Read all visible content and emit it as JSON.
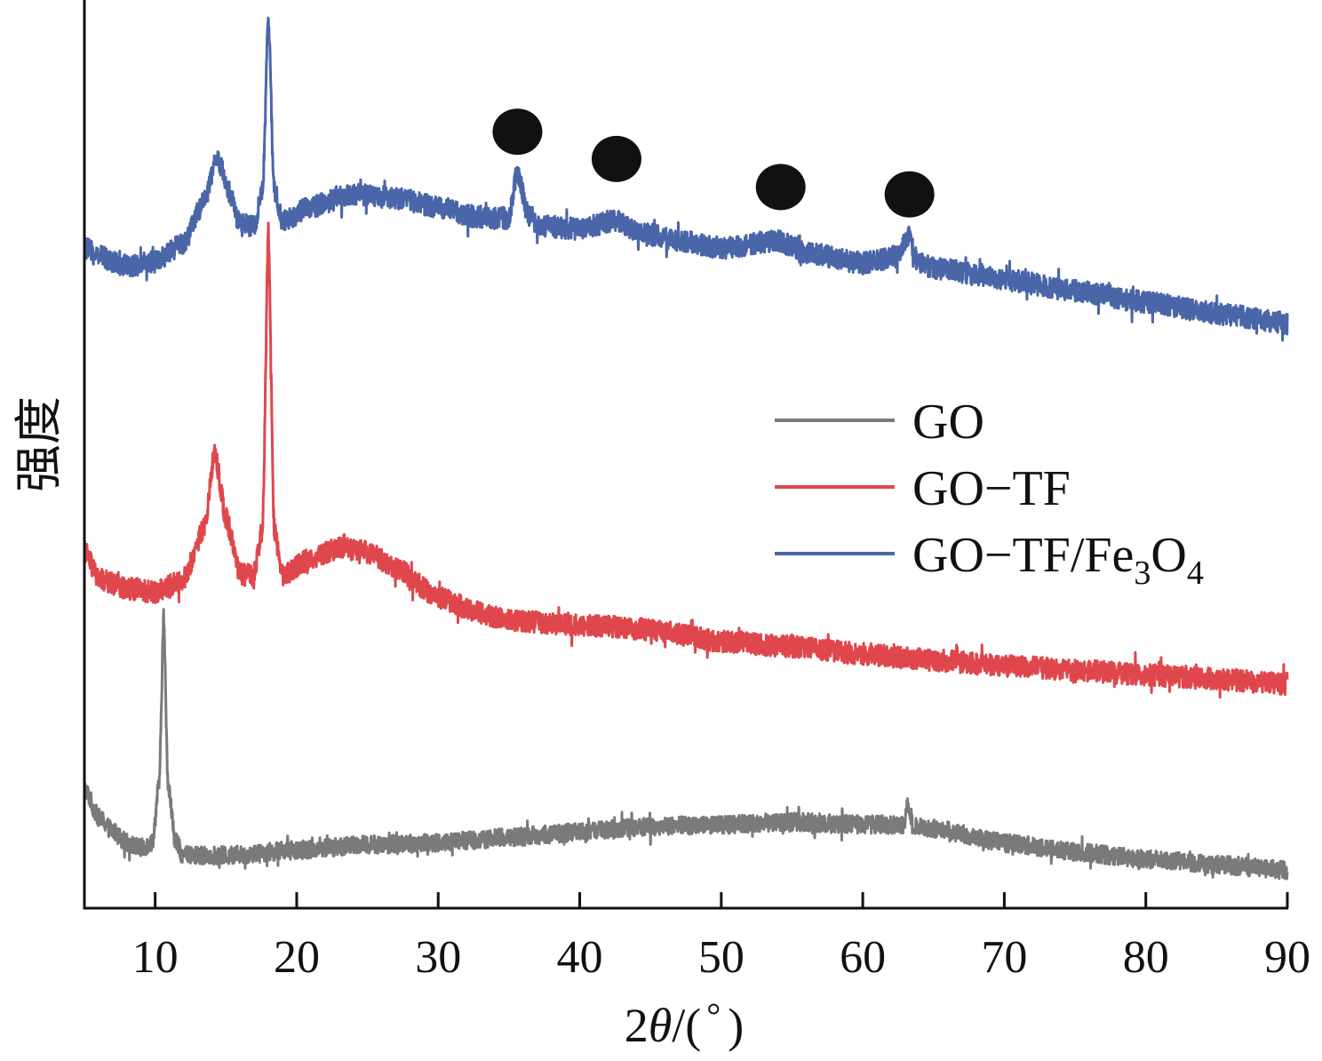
{
  "chart_data": {
    "type": "line",
    "title": "",
    "xlabel": "2θ/(°)",
    "xlabel_parts": {
      "pre": "2",
      "theta": "θ",
      "post": "/(",
      "deg": "°",
      "close": ")"
    },
    "ylabel": "强度",
    "xlim": [
      5,
      90
    ],
    "ylim": [
      0,
      1000
    ],
    "y_units": "arbitrary intensity (a.u.), traces vertically offset",
    "x_ticks": [
      10,
      20,
      30,
      40,
      50,
      60,
      70,
      80,
      90
    ],
    "x_tick_labels": [
      "10",
      "20",
      "30",
      "40",
      "50",
      "60",
      "70",
      "80",
      "90"
    ],
    "y_ticks": [],
    "grid": false,
    "legend": {
      "placement": "center-right",
      "entries": [
        {
          "label": "GO",
          "color": "#7a7a7a"
        },
        {
          "label": "GO−TF",
          "color": "#e0474c"
        },
        {
          "label": "GO−TF/Fe",
          "sub1": "3",
          "mid": "O",
          "sub2": "4",
          "color": "#4a66a8"
        }
      ]
    },
    "series": [
      {
        "name": "GO",
        "color": "#7a7a7a",
        "noise": 10,
        "points": [
          [
            5,
            132
          ],
          [
            6,
            100
          ],
          [
            7,
            85
          ],
          [
            8,
            72
          ],
          [
            9,
            66
          ],
          [
            9.8,
            72
          ],
          [
            10.3,
            140
          ],
          [
            10.6,
            322
          ],
          [
            10.9,
            140
          ],
          [
            11.4,
            75
          ],
          [
            12,
            58
          ],
          [
            15,
            58
          ],
          [
            20,
            64
          ],
          [
            25,
            70
          ],
          [
            30,
            72
          ],
          [
            35,
            78
          ],
          [
            40,
            84
          ],
          [
            45,
            90
          ],
          [
            50,
            92
          ],
          [
            55,
            95
          ],
          [
            60,
            92
          ],
          [
            62.9,
            92
          ],
          [
            63.2,
            117
          ],
          [
            63.5,
            92
          ],
          [
            65,
            88
          ],
          [
            70,
            72
          ],
          [
            75,
            62
          ],
          [
            80,
            54
          ],
          [
            85,
            48
          ],
          [
            90,
            42
          ]
        ]
      },
      {
        "name": "GO−TF",
        "color": "#e0474c",
        "noise": 12,
        "points": [
          [
            5,
            394
          ],
          [
            6,
            362
          ],
          [
            8,
            352
          ],
          [
            10,
            348
          ],
          [
            12,
            362
          ],
          [
            13.5,
            420
          ],
          [
            14.2,
            502
          ],
          [
            15,
            430
          ],
          [
            16,
            367
          ],
          [
            17,
            367
          ],
          [
            17.6,
            420
          ],
          [
            18,
            747
          ],
          [
            18.4,
            420
          ],
          [
            19,
            367
          ],
          [
            21,
            385
          ],
          [
            23,
            397
          ],
          [
            25,
            392
          ],
          [
            27,
            375
          ],
          [
            30,
            342
          ],
          [
            33,
            325
          ],
          [
            35,
            317
          ],
          [
            40,
            312
          ],
          [
            45,
            307
          ],
          [
            50,
            294
          ],
          [
            55,
            288
          ],
          [
            60,
            280
          ],
          [
            65,
            273
          ],
          [
            70,
            267
          ],
          [
            75,
            262
          ],
          [
            80,
            257
          ],
          [
            85,
            252
          ],
          [
            90,
            247
          ]
        ]
      },
      {
        "name": "GO−TF/Fe3O4",
        "color": "#4a66a8",
        "noise": 12,
        "points": [
          [
            5,
            727
          ],
          [
            6,
            718
          ],
          [
            8,
            707
          ],
          [
            10,
            712
          ],
          [
            12,
            732
          ],
          [
            13.5,
            780
          ],
          [
            14.4,
            827
          ],
          [
            15.2,
            790
          ],
          [
            16,
            752
          ],
          [
            17,
            752
          ],
          [
            17.6,
            790
          ],
          [
            18,
            982
          ],
          [
            18.4,
            790
          ],
          [
            19,
            757
          ],
          [
            21,
            772
          ],
          [
            24,
            787
          ],
          [
            27,
            782
          ],
          [
            30,
            772
          ],
          [
            33,
            760
          ],
          [
            35,
            760
          ],
          [
            35.6,
            812
          ],
          [
            36.3,
            765
          ],
          [
            37,
            752
          ],
          [
            40,
            748
          ],
          [
            42.6,
            758
          ],
          [
            44,
            745
          ],
          [
            47,
            735
          ],
          [
            50,
            727
          ],
          [
            54,
            735
          ],
          [
            56,
            722
          ],
          [
            60,
            710
          ],
          [
            62.5,
            718
          ],
          [
            63.2,
            740
          ],
          [
            63.9,
            712
          ],
          [
            65,
            705
          ],
          [
            70,
            692
          ],
          [
            75,
            680
          ],
          [
            80,
            667
          ],
          [
            85,
            655
          ],
          [
            90,
            644
          ]
        ]
      }
    ],
    "annotations": [
      {
        "type": "marker",
        "shape": "filled-circle",
        "color": "#111111",
        "x": 35.6,
        "y": 855,
        "meaning": "Fe3O4 peak"
      },
      {
        "type": "marker",
        "shape": "filled-circle",
        "color": "#111111",
        "x": 42.6,
        "y": 825,
        "meaning": "Fe3O4 peak"
      },
      {
        "type": "marker",
        "shape": "filled-circle",
        "color": "#111111",
        "x": 54.2,
        "y": 794,
        "meaning": "Fe3O4 peak"
      },
      {
        "type": "marker",
        "shape": "filled-circle",
        "color": "#111111",
        "x": 63.3,
        "y": 786,
        "meaning": "Fe3O4 peak"
      }
    ]
  }
}
